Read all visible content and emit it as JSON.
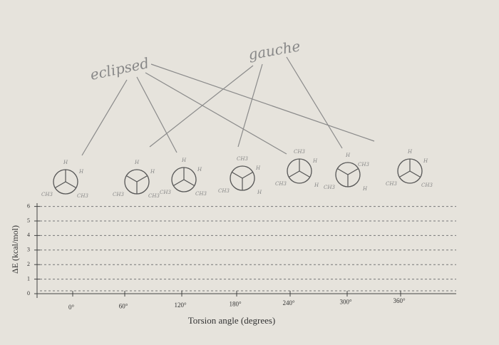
{
  "annotations": {
    "eclipsed": "eclipsed",
    "gauche": "gauche"
  },
  "projections": [
    {
      "labels": [
        "H",
        "H",
        "CH3",
        "CH3"
      ]
    },
    {
      "labels": [
        "H",
        "H",
        "CH3",
        "CH3"
      ]
    },
    {
      "labels": [
        "H",
        "H",
        "CH3",
        "CH3"
      ]
    },
    {
      "labels": [
        "CH3",
        "H",
        "CH3",
        "H"
      ]
    },
    {
      "labels": [
        "CH3",
        "H",
        "CH3",
        "H"
      ]
    },
    {
      "labels": [
        "H",
        "CH3",
        "CH3",
        "H"
      ]
    },
    {
      "labels": [
        "H",
        "H",
        "CH3",
        "CH3"
      ]
    }
  ],
  "graph": {
    "y_label": "ΔE (kcal/mol)",
    "y_ticks": [
      0,
      1,
      2,
      3,
      4,
      5,
      6
    ],
    "x_label": "Torsion angle (degrees)",
    "x_ticks": [
      "0°",
      "60°",
      "120°",
      "180°",
      "240°",
      "300°",
      "360°"
    ]
  }
}
